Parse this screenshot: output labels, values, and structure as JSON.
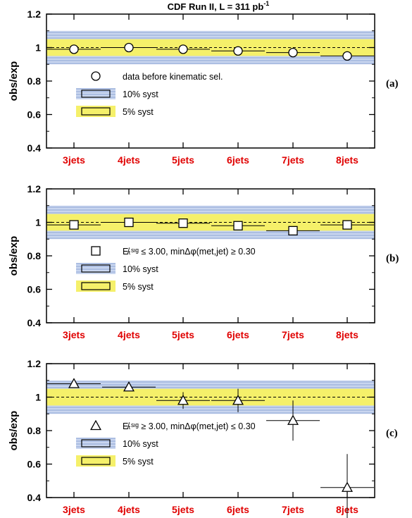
{
  "title": "CDF Run II, L = 311 pb",
  "title_sup": "-1",
  "colors": {
    "band_10": "#b9c9e8",
    "band_10_hatch": "#8fa6d6",
    "band_5": "#f5f06a",
    "category_text": "#e00000",
    "axis": "#000000"
  },
  "chart_data": [
    {
      "type": "scatter",
      "panel_label": "(a)",
      "ylabel": "obs/exp",
      "ylim": [
        0.4,
        1.2
      ],
      "yticks": [
        "0.4",
        "0.6",
        "0.8",
        "1",
        "1.2"
      ],
      "categories": [
        "3jets",
        "4jets",
        "5jets",
        "6jets",
        "7jets",
        "8jets"
      ],
      "marker": "circle",
      "values": [
        0.99,
        1.0,
        0.99,
        0.98,
        0.97,
        0.95
      ],
      "xerr_values": [
        1.0,
        1.0,
        1.0,
        0.98,
        0.97,
        0.95
      ],
      "yerr": [
        0.0,
        0.0,
        0.0,
        0.0,
        0.0,
        0.0
      ],
      "syst_bands": [
        0.1,
        0.05
      ],
      "reference": 1.0,
      "legend": [
        {
          "symbol": "circle",
          "label": "data before kinematic sel."
        },
        {
          "symbol": "band10",
          "label": "10% syst"
        },
        {
          "symbol": "band5",
          "label": "5%  syst"
        }
      ]
    },
    {
      "type": "scatter",
      "panel_label": "(b)",
      "ylabel": "obs/exp",
      "ylim": [
        0.4,
        1.2
      ],
      "yticks": [
        "0.4",
        "0.6",
        "0.8",
        "1",
        "1.2"
      ],
      "categories": [
        "3jets",
        "4jets",
        "5jets",
        "6jets",
        "7jets",
        "8jets"
      ],
      "marker": "square",
      "values": [
        0.985,
        1.0,
        0.995,
        0.98,
        0.95,
        0.985
      ],
      "yerr": [
        0.0,
        0.0,
        0.0,
        0.0,
        0.0,
        0.0
      ],
      "syst_bands": [
        0.1,
        0.05
      ],
      "reference": 1.0,
      "legend": [
        {
          "symbol": "square",
          "label": "E̸ₜˢᶦᵍ ≤ 3.00, minΔφ(met,jet) ≥ 0.30"
        },
        {
          "symbol": "band10",
          "label": "10% syst"
        },
        {
          "symbol": "band5",
          "label": "5%  syst"
        }
      ]
    },
    {
      "type": "scatter",
      "panel_label": "(c)",
      "ylabel": "obs/exp",
      "ylim": [
        0.4,
        1.2
      ],
      "yticks": [
        "0.4",
        "0.6",
        "0.8",
        "1",
        "1.2"
      ],
      "categories": [
        "3jets",
        "4jets",
        "5jets",
        "6jets",
        "7jets",
        "8jets"
      ],
      "marker": "triangle",
      "values": [
        1.08,
        1.06,
        0.98,
        0.98,
        0.86,
        0.46
      ],
      "yerr": [
        0.0,
        0.0,
        0.05,
        0.07,
        0.12,
        0.2
      ],
      "syst_bands": [
        0.1,
        0.05
      ],
      "reference": 1.0,
      "legend": [
        {
          "symbol": "triangle",
          "label": "E̸ₜˢᶦᵍ ≥ 3.00, minΔφ(met,jet) ≤ 0.30"
        },
        {
          "symbol": "band10",
          "label": "10% syst"
        },
        {
          "symbol": "band5",
          "label": "5%  syst"
        }
      ]
    }
  ]
}
